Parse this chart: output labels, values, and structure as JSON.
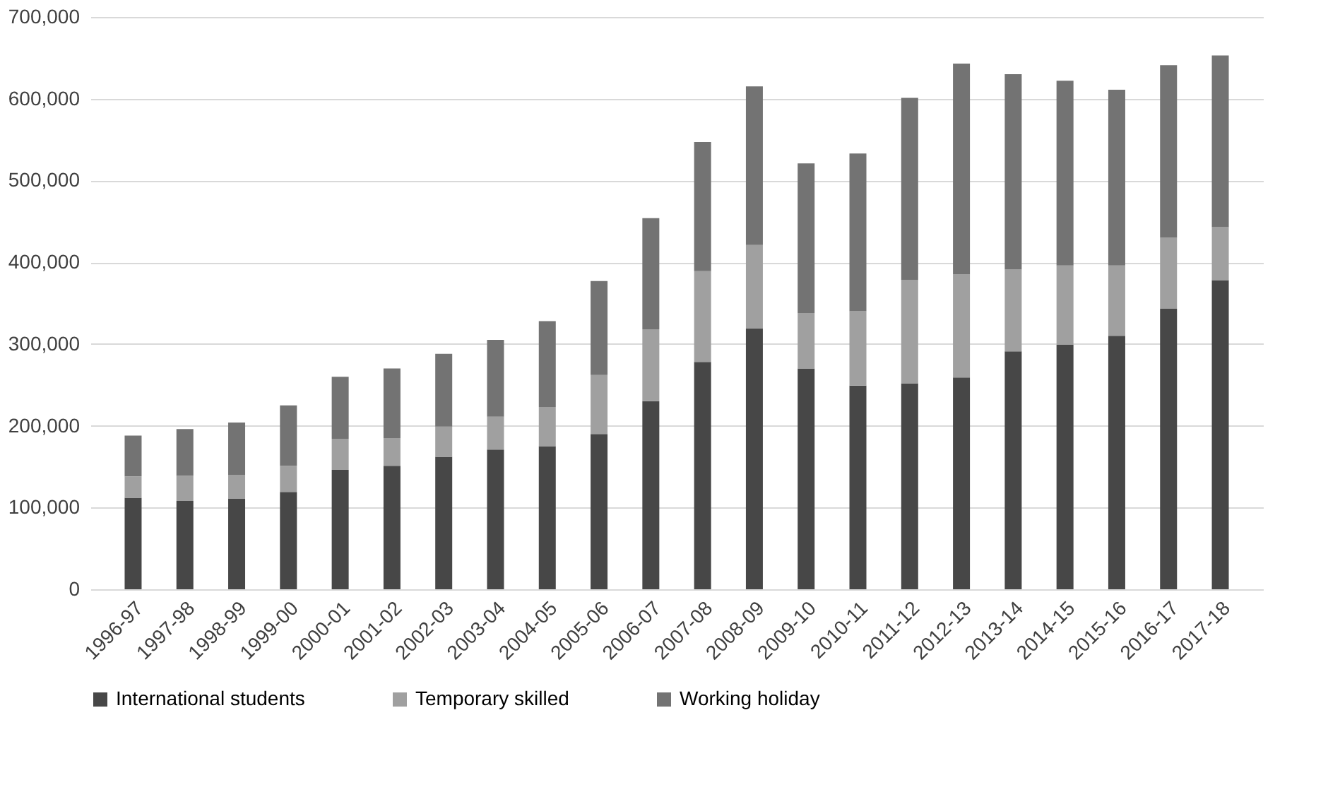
{
  "chart_data": {
    "type": "bar",
    "stacked": true,
    "categories": [
      "1996-97",
      "1997-98",
      "1998-99",
      "1999-00",
      "2000-01",
      "2001-02",
      "2002-03",
      "2003-04",
      "2004-05",
      "2005-06",
      "2006-07",
      "2007-08",
      "2008-09",
      "2009-10",
      "2010-11",
      "2011-12",
      "2012-13",
      "2013-14",
      "2014-15",
      "2015-16",
      "2016-17",
      "2017-18"
    ],
    "series": [
      {
        "name": "International students",
        "color": "#474747",
        "values": [
          112000,
          108000,
          111000,
          119000,
          146000,
          151000,
          162000,
          171000,
          175000,
          190000,
          230000,
          278000,
          319000,
          270000,
          249000,
          252000,
          259000,
          291000,
          299000,
          310000,
          343000,
          378000
        ]
      },
      {
        "name": "Temporary skilled",
        "color": "#a0a0a0",
        "values": [
          26000,
          31000,
          29000,
          32000,
          38000,
          34000,
          37000,
          40000,
          48000,
          72000,
          88000,
          111000,
          102000,
          68000,
          91000,
          126000,
          126000,
          100000,
          97000,
          86000,
          87000,
          65000
        ]
      },
      {
        "name": "Working holiday",
        "color": "#737373",
        "values": [
          50000,
          57000,
          64000,
          74000,
          76000,
          85000,
          89000,
          94000,
          105000,
          115000,
          136000,
          158000,
          194000,
          183000,
          193000,
          223000,
          258000,
          239000,
          226000,
          215000,
          211000,
          210000
        ]
      }
    ],
    "ylim": [
      0,
      700000
    ],
    "yticks": [
      0,
      {
        "value": 100000,
        "label": "100,000"
      },
      {
        "value": 200000,
        "label": "200,000"
      },
      {
        "value": 300000,
        "label": "300,000"
      },
      {
        "value": 400000,
        "label": "400,000"
      },
      {
        "value": 500000,
        "label": "500,000"
      },
      {
        "value": 600000,
        "label": "600,000"
      },
      {
        "value": 700000,
        "label": "700,000"
      }
    ],
    "grid": "y",
    "legend": "bottom"
  }
}
